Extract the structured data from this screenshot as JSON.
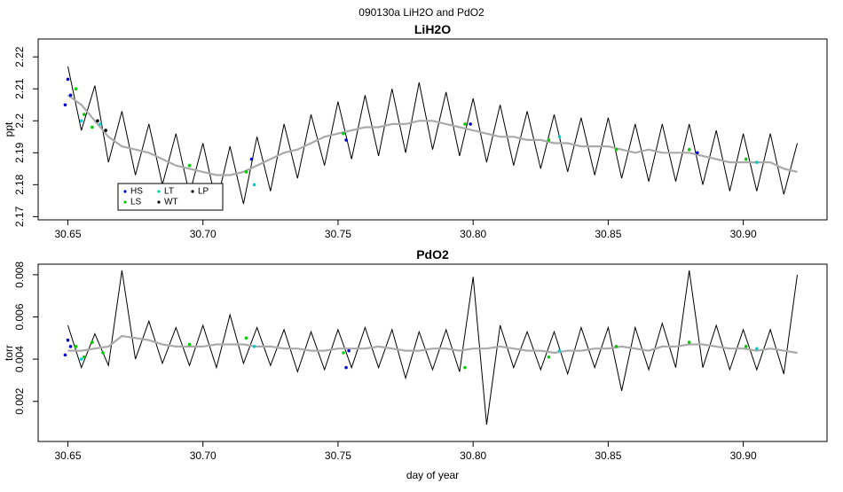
{
  "title": "090130a   LiH2O and PdO2",
  "chart_data": [
    {
      "type": "line",
      "title": "LiH2O",
      "ylabel": "ppt",
      "xlim": [
        30.639,
        30.931
      ],
      "xticks": [
        30.65,
        {
          "value": 30.7,
          "label": "30.70"
        },
        30.75,
        {
          "value": 30.8,
          "label": "30.80"
        },
        30.85,
        {
          "value": 30.9,
          "label": "30.90"
        }
      ],
      "ylim": [
        2.169,
        2.2256
      ],
      "yticks": [
        2.17,
        2.18,
        2.19,
        2.2,
        2.21,
        2.22
      ],
      "legend": "bottom-left",
      "x": [
        30.65,
        30.655,
        30.66,
        30.665,
        30.67,
        30.675,
        30.68,
        30.685,
        30.69,
        30.695,
        30.7,
        30.705,
        30.71,
        30.715,
        30.72,
        30.725,
        30.73,
        30.735,
        30.74,
        30.745,
        30.75,
        30.755,
        30.76,
        30.765,
        30.77,
        30.775,
        30.78,
        30.785,
        30.79,
        30.795,
        30.8,
        30.805,
        30.81,
        30.815,
        30.82,
        30.825,
        30.83,
        30.835,
        30.84,
        30.845,
        30.85,
        30.855,
        30.86,
        30.865,
        30.87,
        30.875,
        30.88,
        30.885,
        30.89,
        30.895,
        30.9,
        30.905,
        30.91,
        30.915,
        30.92
      ],
      "lines": [
        {
          "color": "#000000",
          "values": [
            2.217,
            2.197,
            2.211,
            2.187,
            2.203,
            2.183,
            2.199,
            2.18,
            2.196,
            2.177,
            2.193,
            2.174,
            2.192,
            2.174,
            2.195,
            2.178,
            2.199,
            2.182,
            2.202,
            2.186,
            2.206,
            2.188,
            2.208,
            2.189,
            2.21,
            2.19,
            2.212,
            2.191,
            2.209,
            2.189,
            2.207,
            2.187,
            2.205,
            2.186,
            2.203,
            2.185,
            2.202,
            2.184,
            2.201,
            2.183,
            2.201,
            2.182,
            2.199,
            2.181,
            2.199,
            2.181,
            2.199,
            2.18,
            2.197,
            2.178,
            2.196,
            2.178,
            2.196,
            2.177,
            2.193
          ]
        },
        {
          "color": "#aaaaaa",
          "values": [
            2.208,
            2.205,
            2.2,
            2.195,
            2.192,
            2.191,
            2.19,
            2.188,
            2.186,
            2.185,
            2.184,
            2.183,
            2.183,
            2.184,
            2.186,
            2.188,
            2.19,
            2.191,
            2.193,
            2.195,
            2.196,
            2.197,
            2.198,
            2.198,
            2.199,
            2.199,
            2.2,
            2.2,
            2.199,
            2.198,
            2.197,
            2.196,
            2.195,
            2.195,
            2.194,
            2.194,
            2.193,
            2.193,
            2.192,
            2.192,
            2.192,
            2.191,
            2.19,
            2.191,
            2.19,
            2.19,
            2.19,
            2.189,
            2.188,
            2.187,
            2.187,
            2.187,
            2.187,
            2.185,
            2.184
          ]
        }
      ],
      "series": [
        {
          "name": "HS",
          "color": "#0000cc",
          "x": [
            30.649,
            30.65,
            30.651,
            30.718,
            30.753,
            30.799,
            30.883
          ],
          "values": [
            2.205,
            2.213,
            2.208,
            2.188,
            2.194,
            2.199,
            2.19
          ]
        },
        {
          "name": "LS",
          "color": "#00cc00",
          "x": [
            30.653,
            30.656,
            30.659,
            30.695,
            30.716,
            30.752,
            30.797,
            30.828,
            30.853,
            30.88,
            30.901
          ],
          "values": [
            2.21,
            2.202,
            2.198,
            2.186,
            2.184,
            2.196,
            2.199,
            2.194,
            2.191,
            2.191,
            2.188
          ]
        },
        {
          "name": "LT",
          "color": "#00cccc",
          "x": [
            30.655,
            30.662,
            30.719,
            30.832,
            30.905
          ],
          "values": [
            2.2,
            2.199,
            2.18,
            2.195,
            2.187
          ]
        },
        {
          "name": "WT",
          "color": "#000000",
          "x": [
            30.661
          ],
          "values": [
            2.2
          ]
        },
        {
          "name": "LP",
          "color": "#000000",
          "x": [
            30.664
          ],
          "values": [
            2.197
          ]
        }
      ]
    },
    {
      "type": "line",
      "title": "PdO2",
      "ylabel": "torr",
      "xlabel": "day of year",
      "xlim": [
        30.639,
        30.931
      ],
      "xticks": [
        30.65,
        {
          "value": 30.7,
          "label": "30.70"
        },
        30.75,
        {
          "value": 30.8,
          "label": "30.80"
        },
        30.85,
        {
          "value": 30.9,
          "label": "30.90"
        }
      ],
      "ylim": [
        0.0001,
        0.0085
      ],
      "yticks": [
        0.002,
        0.004,
        0.006,
        0.008
      ],
      "x": [
        30.65,
        30.655,
        30.66,
        30.665,
        30.67,
        30.675,
        30.68,
        30.685,
        30.69,
        30.695,
        30.7,
        30.705,
        30.71,
        30.715,
        30.72,
        30.725,
        30.73,
        30.735,
        30.74,
        30.745,
        30.75,
        30.755,
        30.76,
        30.765,
        30.77,
        30.775,
        30.78,
        30.785,
        30.79,
        30.795,
        30.8,
        30.805,
        30.81,
        30.815,
        30.82,
        30.825,
        30.83,
        30.835,
        30.84,
        30.845,
        30.85,
        30.855,
        30.86,
        30.865,
        30.87,
        30.875,
        30.88,
        30.885,
        30.89,
        30.895,
        30.9,
        30.905,
        30.91,
        30.915,
        30.92
      ],
      "lines": [
        {
          "color": "#000000",
          "values": [
            0.0056,
            0.0036,
            0.0052,
            0.0037,
            0.0082,
            0.004,
            0.0058,
            0.0038,
            0.0055,
            0.0037,
            0.0056,
            0.0036,
            0.0061,
            0.0038,
            0.0055,
            0.0037,
            0.0054,
            0.0034,
            0.0053,
            0.0035,
            0.0054,
            0.0036,
            0.0055,
            0.0036,
            0.0054,
            0.0031,
            0.0053,
            0.0035,
            0.0054,
            0.0034,
            0.0079,
            0.0009,
            0.0056,
            0.0036,
            0.0053,
            0.0035,
            0.0053,
            0.0033,
            0.0055,
            0.0036,
            0.0055,
            0.0025,
            0.0055,
            0.0035,
            0.0057,
            0.0036,
            0.0082,
            0.0036,
            0.0056,
            0.0035,
            0.0054,
            0.0035,
            0.0054,
            0.0033,
            0.008
          ]
        },
        {
          "color": "#aaaaaa",
          "values": [
            0.0044,
            0.0044,
            0.0045,
            0.0046,
            0.0051,
            0.005,
            0.0049,
            0.0047,
            0.0046,
            0.0046,
            0.0046,
            0.0047,
            0.0047,
            0.0047,
            0.0046,
            0.0046,
            0.0045,
            0.0045,
            0.0044,
            0.0044,
            0.0045,
            0.0045,
            0.0045,
            0.0046,
            0.0045,
            0.0044,
            0.0044,
            0.0045,
            0.0045,
            0.0044,
            0.0045,
            0.0045,
            0.0046,
            0.0045,
            0.0044,
            0.0044,
            0.0043,
            0.0044,
            0.0044,
            0.0045,
            0.0045,
            0.0046,
            0.0045,
            0.0044,
            0.0046,
            0.0046,
            0.0047,
            0.0047,
            0.0046,
            0.0045,
            0.0045,
            0.0044,
            0.0045,
            0.0044,
            0.0043
          ]
        }
      ],
      "series": [
        {
          "color": "#0000cc",
          "x": [
            30.649,
            30.65,
            30.651,
            30.753,
            30.754
          ],
          "values": [
            0.0042,
            0.0049,
            0.0046,
            0.0036,
            0.0044
          ]
        },
        {
          "color": "#00cc00",
          "x": [
            30.653,
            30.656,
            30.659,
            30.663,
            30.695,
            30.716,
            30.752,
            30.797,
            30.828,
            30.853,
            30.88,
            30.901
          ],
          "values": [
            0.0046,
            0.0041,
            0.0048,
            0.0043,
            0.0047,
            0.005,
            0.0043,
            0.0036,
            0.0041,
            0.0046,
            0.0048,
            0.0046
          ]
        },
        {
          "color": "#00cccc",
          "x": [
            30.655,
            30.719,
            30.832,
            30.905
          ],
          "values": [
            0.004,
            0.0046,
            0.0044,
            0.0045
          ]
        }
      ]
    }
  ]
}
